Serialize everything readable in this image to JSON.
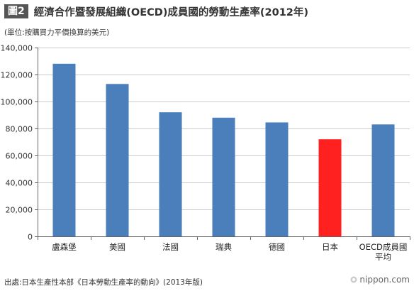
{
  "header": {
    "figure_label": "圖2",
    "title": "經濟合作暨發展組織(OECD)成員國的勞動生產率(2012年)"
  },
  "unit_note": "(單位:按購買力平價換算的美元)",
  "source_note": "出處:日本生產性本部《日本勞動生產率的動向》(2013年版)",
  "brand": {
    "icon": "nippon-logo-icon",
    "text": "nippon.com"
  },
  "colors": {
    "bar_default": "#4a7fbb",
    "bar_highlight": "#ff2020",
    "grid": "#cccccc",
    "axis": "#666666"
  },
  "chart_data": {
    "type": "bar",
    "categories": [
      "盧森堡",
      "美國",
      "法國",
      "瑞典",
      "德國",
      "日本",
      "OECD成員國\n平均"
    ],
    "values": [
      128000,
      113000,
      92000,
      88000,
      84500,
      72000,
      83000
    ],
    "highlight_index": 5,
    "ylim": [
      0,
      140000
    ],
    "yticks": [
      0,
      20000,
      40000,
      60000,
      80000,
      100000,
      120000,
      140000
    ],
    "ytick_labels": [
      "0",
      "20,000",
      "40,000",
      "60,000",
      "80,000",
      "100,000",
      "120,000",
      "140,000"
    ],
    "grid": true,
    "xlabel": "",
    "ylabel": ""
  }
}
